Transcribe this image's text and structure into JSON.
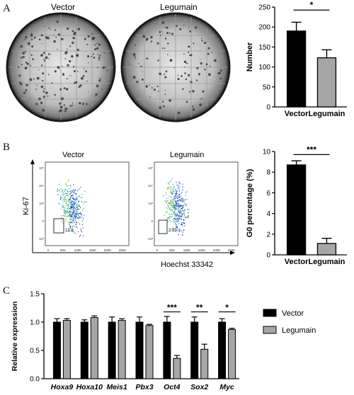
{
  "panels": {
    "a": {
      "letter": "A",
      "dish_labels": [
        "Vector",
        "Legumain"
      ],
      "chart": {
        "type": "bar",
        "categories": [
          "Vector",
          "Legumain"
        ],
        "values": [
          190,
          123
        ],
        "errors": [
          22,
          20
        ],
        "ylabel": "Number",
        "ylim": [
          0,
          250
        ],
        "yticks": [
          "0",
          "50",
          "100",
          "150",
          "200",
          "250"
        ],
        "significance": "*",
        "colors": [
          "#000000",
          "#a6a6a6"
        ]
      }
    },
    "b": {
      "letter": "B",
      "flow": {
        "plot_titles": [
          "Vector",
          "Legumain"
        ],
        "y_axis_label": "Ki-67",
        "x_axis_label": "Hoechst 33342",
        "gate_values": [
          "12.9",
          "2.92"
        ],
        "x_ticks": [
          "0",
          "50K",
          "100K",
          "150K",
          "200K",
          "250K"
        ],
        "y_ticks": [
          "10⁵",
          "10⁴",
          "10³",
          "0",
          "-10³"
        ]
      },
      "chart": {
        "type": "bar",
        "categories": [
          "Vector",
          "Legumain"
        ],
        "values": [
          8.7,
          1.1
        ],
        "errors": [
          0.4,
          0.5
        ],
        "ylabel": "G0 percentage (%)",
        "ylim": [
          0,
          10
        ],
        "yticks": [
          "0",
          "2",
          "4",
          "6",
          "8",
          "10"
        ],
        "significance": "***",
        "colors": [
          "#000000",
          "#a6a6a6"
        ]
      }
    },
    "c": {
      "letter": "C",
      "chart": {
        "type": "bar",
        "categories": [
          "Hoxa9",
          "Hoxa10",
          "Meis1",
          "Pbx3",
          "Oct4",
          "Sox2",
          "Myc"
        ],
        "series": [
          {
            "name": "Vector",
            "values": [
              1.0,
              1.0,
              1.0,
              1.0,
              1.0,
              1.0,
              1.0
            ],
            "errors": [
              0.06,
              0.04,
              0.09,
              0.09,
              0.1,
              0.09,
              0.06
            ],
            "color": "#000000"
          },
          {
            "name": "Legumain",
            "values": [
              1.03,
              1.08,
              1.03,
              0.94,
              0.36,
              0.52,
              0.87
            ],
            "errors": [
              0.03,
              0.03,
              0.03,
              0.02,
              0.05,
              0.09,
              0.02
            ],
            "color": "#a6a6a6"
          }
        ],
        "ylabel": "Relative expression",
        "ylim": [
          0,
          1.5
        ],
        "yticks": [
          "0.0",
          "0.5",
          "1.0",
          "1.5"
        ],
        "significance": [
          {
            "category": "Oct4",
            "label": "***"
          },
          {
            "category": "Sox2",
            "label": "**"
          },
          {
            "category": "Myc",
            "label": "*"
          }
        ],
        "legend_position": "right"
      }
    }
  }
}
